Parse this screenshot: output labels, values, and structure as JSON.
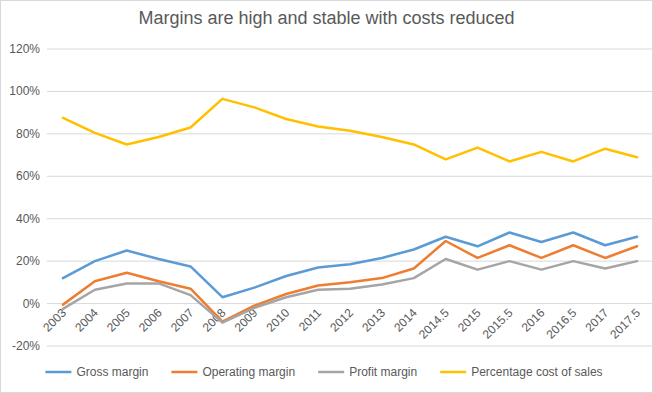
{
  "chart_data": {
    "type": "line",
    "title": "Margins are high and stable with costs reduced",
    "categories": [
      "2003",
      "2004",
      "2005",
      "2006",
      "2007",
      "2008",
      "2009",
      "2010",
      "2011",
      "2012",
      "2013",
      "2014",
      "2014.5",
      "2015",
      "2015.5",
      "2016",
      "2016.5",
      "2017",
      "2017.5"
    ],
    "series": [
      {
        "name": "Gross margin",
        "color": "#5b9bd5",
        "values": [
          12,
          20,
          25,
          21,
          17.5,
          3,
          7.5,
          13,
          17,
          18.5,
          21.5,
          25.5,
          31.5,
          27,
          33.5,
          29,
          33.5,
          27.5,
          31.5
        ]
      },
      {
        "name": "Operating margin",
        "color": "#ed7d31",
        "values": [
          -0.5,
          10.5,
          14.5,
          10.5,
          7,
          -8.5,
          -1,
          4.5,
          8.5,
          10,
          12,
          16.5,
          29.5,
          21.5,
          27.5,
          21.5,
          27.5,
          21.5,
          27
        ]
      },
      {
        "name": "Profit margin",
        "color": "#a5a5a5",
        "values": [
          -2.5,
          6.5,
          9.5,
          9.5,
          4,
          -9,
          -2,
          3,
          6.5,
          7,
          9,
          12,
          21,
          16,
          20,
          16,
          20,
          16.5,
          20
        ]
      },
      {
        "name": "Percentage cost of sales",
        "color": "#ffc000",
        "values": [
          87.5,
          80.5,
          75,
          78.5,
          83,
          96.5,
          92.5,
          87,
          83.5,
          81.5,
          78.5,
          75,
          68,
          73.5,
          67,
          71.5,
          67,
          73,
          69
        ]
      }
    ],
    "ylim": [
      -20,
      120
    ],
    "yticks": [
      {
        "value": -20,
        "label": "-20%"
      },
      {
        "value": 0,
        "label": "0%"
      },
      {
        "value": 20,
        "label": "20%"
      },
      {
        "value": 40,
        "label": "40%"
      },
      {
        "value": 60,
        "label": "60%"
      },
      {
        "value": 80,
        "label": "80%"
      },
      {
        "value": 100,
        "label": "100%"
      },
      {
        "value": 120,
        "label": "120%"
      }
    ],
    "grid": true,
    "legend": "bottom"
  }
}
